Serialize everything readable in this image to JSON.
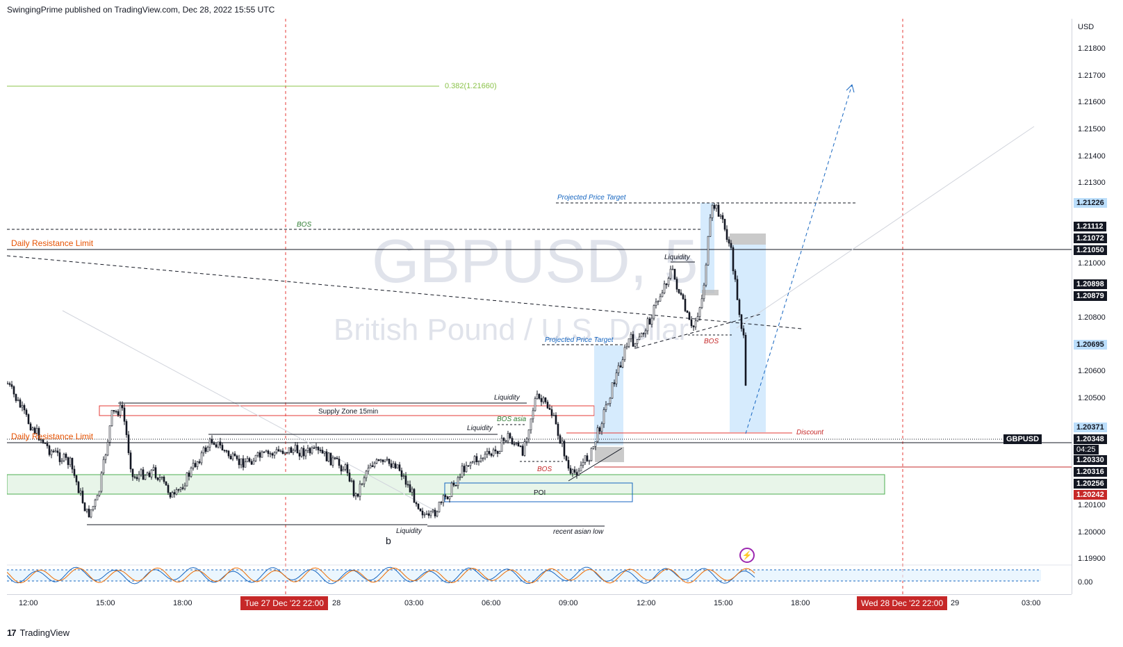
{
  "header": {
    "text": "SwingingPrime published on TradingView.com, Dec 28, 2022 15:55 UTC"
  },
  "watermark": {
    "symbol": "GBPUSD, 5",
    "description": "British Pound / U.S. Dollar"
  },
  "price_axis": {
    "currency": "USD",
    "ticks": [
      "1.21800",
      "1.21700",
      "1.21600",
      "1.21500",
      "1.21400",
      "1.21300",
      "1.21000",
      "1.20800",
      "1.20600",
      "1.20500",
      "1.20100",
      "1.20000",
      "1.19900",
      "0.00"
    ],
    "badges": {
      "b1": "1.21226",
      "b2": "1.21112",
      "b3": "1.21072",
      "b4": "1.21050",
      "b5": "1.20898",
      "b6": "1.20879",
      "b7": "1.20695",
      "b8": "1.20371",
      "b9": "1.20348",
      "b10": "04:25",
      "b11": "1.20330",
      "b12": "1.20316",
      "b13": "1.20256",
      "b14": "1.20242"
    },
    "symbol_tag": "GBPUSD"
  },
  "time_axis": {
    "ticks": [
      "12:00",
      "15:00",
      "18:00",
      "28",
      "03:00",
      "06:00",
      "09:00",
      "12:00",
      "15:00",
      "18:00",
      "29",
      "03:00"
    ],
    "badge_left": "Tue 27 Dec '22   22:00",
    "badge_right": "Wed 28 Dec '22   22:00"
  },
  "annotations": {
    "fib": "0.382(1.21660)",
    "daily_resistance_1": "Daily Resistance Limit",
    "daily_resistance_2": "Daily Resistance Limit",
    "bos_1": "BOS",
    "bos_2": "BOS",
    "bos_3": "BOS",
    "bos_asia": "BOS asia",
    "projected_1": "Projected Price Target",
    "projected_2": "Projected Price Target",
    "liquidity_1": "Liquidity",
    "liquidity_2": "Liquidity",
    "liquidity_3": "Liquidity",
    "liquidity_4": "Liquidity",
    "supply_zone": "Supply Zone 15min",
    "poi": "POI",
    "discount": "Discount",
    "recent_asian_low": "recent asian low",
    "b_label": "b"
  },
  "colors": {
    "bull": "#131722",
    "axis": "#d1d4dc",
    "red_line": "#e53935",
    "green_zone": "#4caf50",
    "blue_zone": "#90caf9",
    "fib_green": "#8bc34a",
    "orange": "#e65100",
    "badge_blue": "#bbdefb"
  },
  "footer": {
    "brand": "TradingView"
  }
}
